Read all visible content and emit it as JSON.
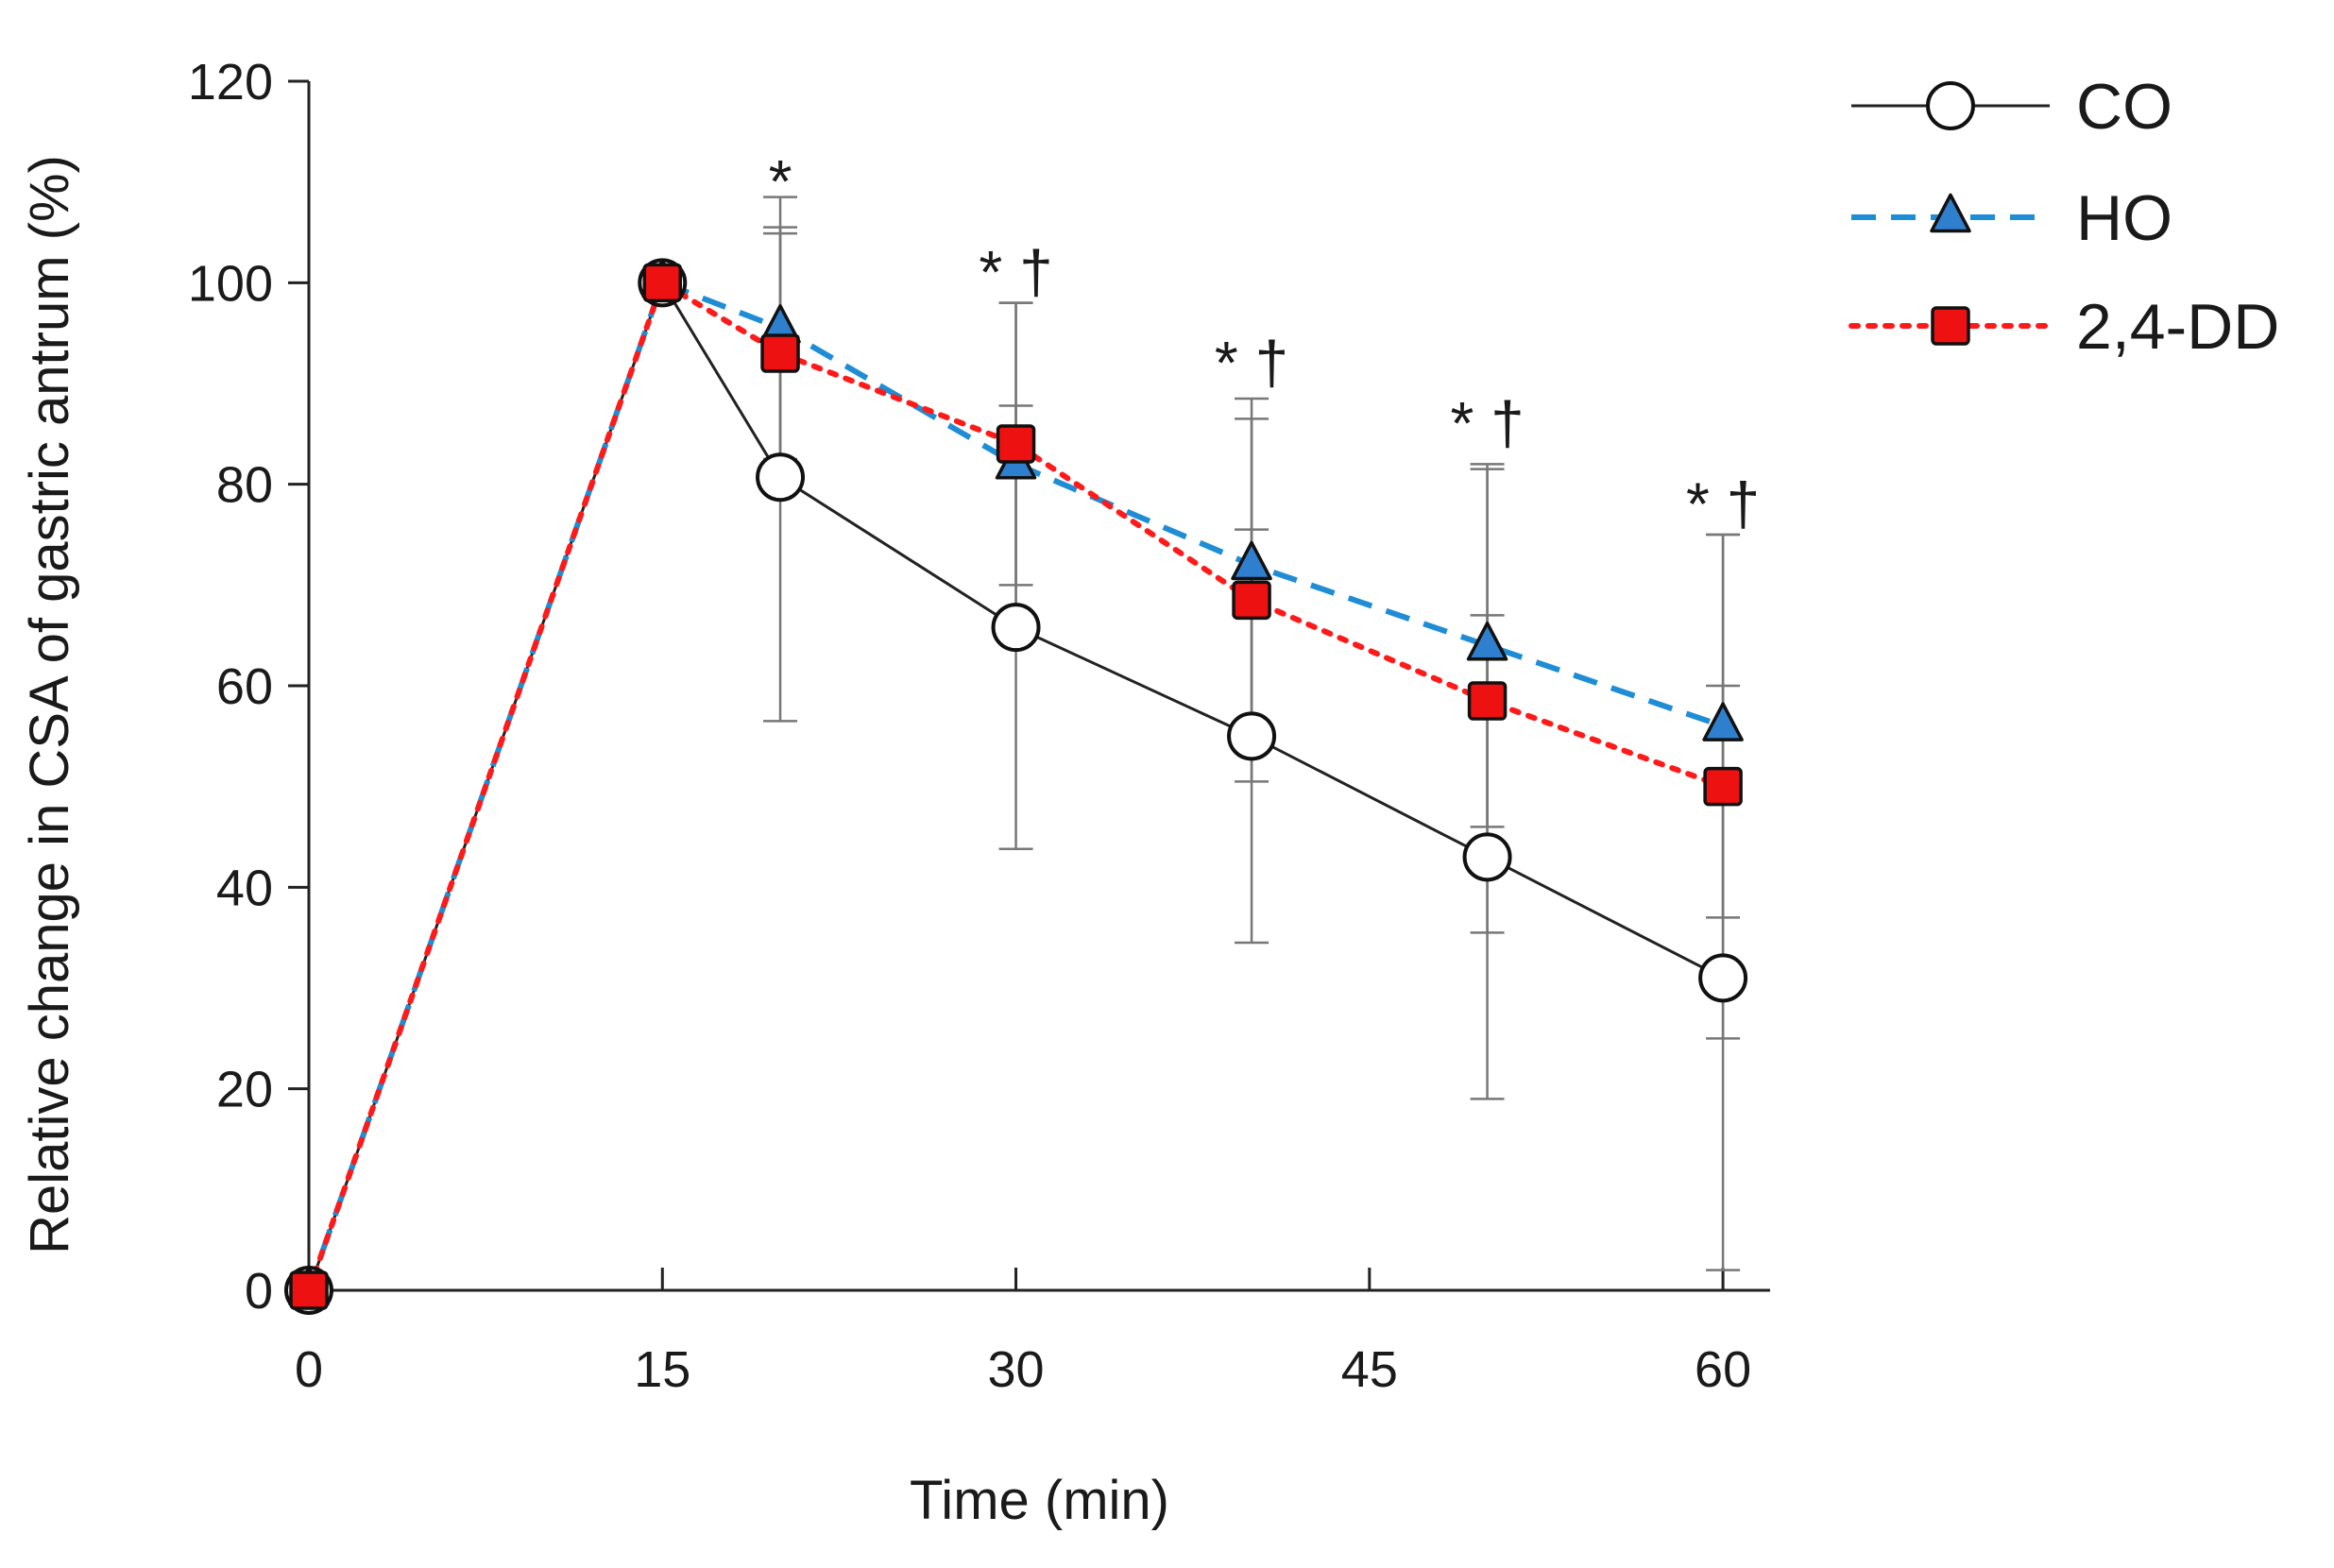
{
  "chart_data": {
    "type": "line",
    "title": "",
    "xlabel": "Time (min)",
    "ylabel": "Relative change in CSA of gastric antrum (%)",
    "xlim": [
      0,
      62
    ],
    "ylim": [
      0,
      120
    ],
    "xticks": [
      0,
      15,
      30,
      45,
      60
    ],
    "yticks": [
      0,
      20,
      40,
      60,
      80,
      100,
      120
    ],
    "grid": false,
    "legend_position": "top-right",
    "series": [
      {
        "name": "CO",
        "line_style": "solid",
        "line_color": "#222222",
        "marker": "circle",
        "marker_fill": "#ffffff",
        "x": [
          0,
          15,
          20,
          30,
          40,
          50,
          60
        ],
        "y": [
          0,
          100,
          80.7,
          65.8,
          55.0,
          43.0,
          31.0
        ],
        "error": [
          0,
          0,
          24.2,
          22.0,
          20.5,
          24.0,
          29.0
        ]
      },
      {
        "name": "HO",
        "line_style": "dashed",
        "line_color": "#1f8dd6",
        "marker": "triangle",
        "marker_fill": "#2f7fcf",
        "x": [
          0,
          15,
          20,
          30,
          40,
          50,
          60
        ],
        "y": [
          0,
          100,
          95.5,
          82.0,
          72.0,
          64.0,
          56.0
        ],
        "error": [
          0,
          0,
          13.0,
          16.0,
          16.5,
          18.0,
          19.0
        ]
      },
      {
        "name": "2,4-DD",
        "line_style": "dotted",
        "line_color": "#ff1a1a",
        "marker": "square",
        "marker_fill": "#ee1111",
        "x": [
          0,
          15,
          20,
          30,
          40,
          50,
          60
        ],
        "y": [
          0,
          100,
          93.0,
          84.0,
          68.5,
          58.5,
          50.0
        ],
        "error": [
          0,
          0,
          12.5,
          14.0,
          18.0,
          23.0,
          25.0
        ]
      }
    ],
    "annotations": [
      {
        "x": 20,
        "y": 108,
        "text": "*"
      },
      {
        "x": 30,
        "y": 99,
        "text": "* †"
      },
      {
        "x": 40,
        "y": 90,
        "text": "* †"
      },
      {
        "x": 50,
        "y": 84,
        "text": "* †"
      },
      {
        "x": 60,
        "y": 76,
        "text": "* †"
      }
    ]
  }
}
